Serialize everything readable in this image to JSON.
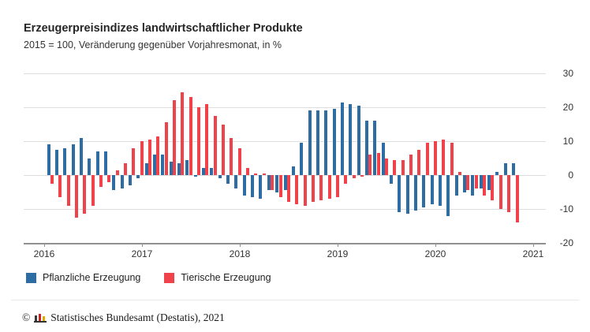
{
  "title": "Erzeugerpreisindizes landwirtschaftlicher Produkte",
  "subtitle": "2015 = 100, Veränderung gegenüber Vorjahresmonat, in %",
  "legend": [
    {
      "label": "Pflanzliche Erzeugung",
      "color": "#2e6da4"
    },
    {
      "label": "Tierische Erzeugung",
      "color": "#ef424a"
    }
  ],
  "y_axis": {
    "ticks": [
      30,
      20,
      10,
      0,
      -10,
      -20
    ]
  },
  "x_axis": {
    "ticks": [
      "2016",
      "2017",
      "2018",
      "2019",
      "2020",
      "2021"
    ]
  },
  "footer": {
    "copyright_symbol": "©",
    "copyright": "Statistisches Bundesamt (Destatis), 2021"
  },
  "chart_data": {
    "type": "bar",
    "title": "Erzeugerpreisindizes landwirtschaftlicher Produkte",
    "subtitle": "2015 = 100, Veränderung gegenüber Vorjahresmonat, in %",
    "unit": "%",
    "ylim": [
      -20,
      30
    ],
    "grid": true,
    "legend_position": "bottom",
    "x": [
      "2016-01",
      "2016-02",
      "2016-03",
      "2016-04",
      "2016-05",
      "2016-06",
      "2016-07",
      "2016-08",
      "2016-09",
      "2016-10",
      "2016-11",
      "2016-12",
      "2017-01",
      "2017-02",
      "2017-03",
      "2017-04",
      "2017-05",
      "2017-06",
      "2017-07",
      "2017-08",
      "2017-09",
      "2017-10",
      "2017-11",
      "2017-12",
      "2018-01",
      "2018-02",
      "2018-03",
      "2018-04",
      "2018-05",
      "2018-06",
      "2018-07",
      "2018-08",
      "2018-09",
      "2018-10",
      "2018-11",
      "2018-12",
      "2019-01",
      "2019-02",
      "2019-03",
      "2019-04",
      "2019-05",
      "2019-06",
      "2019-07",
      "2019-08",
      "2019-09",
      "2019-10",
      "2019-11",
      "2019-12",
      "2020-01",
      "2020-02",
      "2020-03",
      "2020-04",
      "2020-05",
      "2020-06",
      "2020-07",
      "2020-08",
      "2020-09",
      "2020-10"
    ],
    "series": [
      {
        "name": "Pflanzliche Erzeugung",
        "color": "#2e6da4",
        "values": [
          9,
          7.5,
          8,
          9,
          11,
          5,
          7,
          7,
          -4.5,
          -4,
          -3,
          -1,
          3.5,
          6,
          6,
          4,
          3.5,
          4.5,
          -0.5,
          2,
          2,
          -1,
          -2.5,
          -4,
          -6,
          -6.5,
          -7,
          -4.5,
          -5,
          -4.5,
          2.5,
          9.5,
          19,
          19,
          19,
          19.5,
          21.5,
          21,
          20.5,
          16,
          16,
          9.5,
          -2.5,
          -11,
          -11.5,
          -10.5,
          -9.5,
          -8.5,
          -9,
          -12,
          -6,
          -5,
          -6,
          -4,
          -4.5,
          1,
          3.5,
          3.5
        ]
      },
      {
        "name": "Tierische Erzeugung",
        "color": "#ef424a",
        "values": [
          -2.5,
          -6.5,
          -9,
          -12.5,
          -11.5,
          -9,
          -3.5,
          -2,
          1.5,
          3.5,
          8,
          10,
          10.5,
          11.5,
          15.5,
          22,
          24.5,
          23,
          20,
          21,
          17.5,
          15,
          11,
          8,
          2,
          0.5,
          0.5,
          -4.5,
          -6.5,
          -8,
          -8.5,
          -9,
          -8,
          -7.5,
          -7,
          -6.5,
          -2.5,
          -1,
          -0.5,
          6,
          6.5,
          5,
          4.5,
          4.5,
          6,
          7.5,
          9.5,
          10,
          10.5,
          9.5,
          1,
          -4.5,
          -4,
          -6,
          -7.5,
          -10,
          -11,
          -14
        ]
      }
    ]
  }
}
